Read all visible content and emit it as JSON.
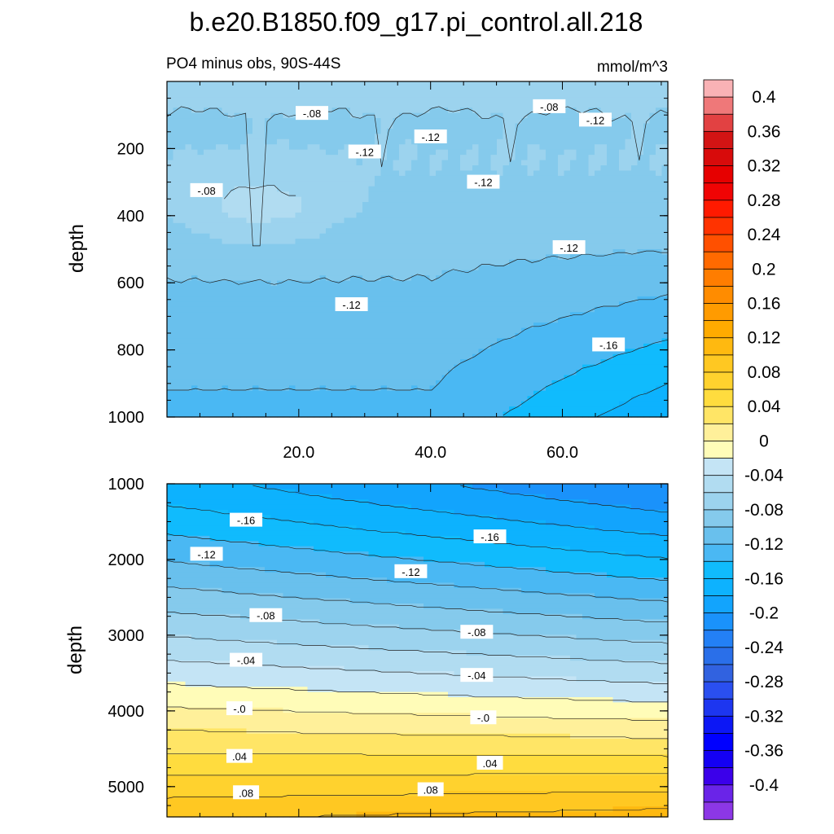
{
  "title": "b.e20.B1850.f09_g17.pi_control.all.218",
  "subtitle_left": "PO4 minus obs, 90S-44S",
  "subtitle_right": "mmol/m^3",
  "chart_data": [
    {
      "type": "contour",
      "panel": "upper",
      "ylabel": "depth",
      "ylim": [
        0,
        1000
      ],
      "y_inverted": true,
      "y_ticks": [
        "200",
        "400",
        "600",
        "800",
        "1000"
      ],
      "xlim": [
        0,
        76
      ],
      "x_ticks": [
        "20.0",
        "40.0",
        "60.0"
      ],
      "contour_labels": [
        {
          "text": "-.08",
          "x": 22,
          "y": 95
        },
        {
          "text": "-.08",
          "x": 58,
          "y": 75
        },
        {
          "text": "-.12",
          "x": 65,
          "y": 115
        },
        {
          "text": "-.12",
          "x": 40,
          "y": 165
        },
        {
          "text": "-.12",
          "x": 30,
          "y": 210
        },
        {
          "text": "-.12",
          "x": 48,
          "y": 300
        },
        {
          "text": "-.08",
          "x": 6,
          "y": 325
        },
        {
          "text": "-.12",
          "x": 61,
          "y": 495
        },
        {
          "text": "-.12",
          "x": 28,
          "y": 665
        },
        {
          "text": "-.16",
          "x": 67,
          "y": 785
        }
      ]
    },
    {
      "type": "contour",
      "panel": "lower",
      "ylabel": "depth",
      "ylim": [
        1000,
        5400
      ],
      "y_inverted": true,
      "y_ticks": [
        "1000",
        "2000",
        "3000",
        "4000",
        "5000"
      ],
      "contour_labels": [
        {
          "text": "-.16",
          "x": 12,
          "y": 1480
        },
        {
          "text": "-.16",
          "x": 49,
          "y": 1700
        },
        {
          "text": "-.12",
          "x": 6,
          "y": 1930
        },
        {
          "text": "-.12",
          "x": 37,
          "y": 2160
        },
        {
          "text": "-.08",
          "x": 15,
          "y": 2740
        },
        {
          "text": "-.08",
          "x": 47,
          "y": 2960
        },
        {
          "text": "-.04",
          "x": 12,
          "y": 3330
        },
        {
          "text": "-.04",
          "x": 47,
          "y": 3530
        },
        {
          "text": "-.0",
          "x": 11,
          "y": 3970
        },
        {
          "text": "-.0",
          "x": 48,
          "y": 4090
        },
        {
          "text": ".04",
          "x": 11,
          "y": 4600
        },
        {
          "text": ".04",
          "x": 49,
          "y": 4690
        },
        {
          "text": ".08",
          "x": 12,
          "y": 5080
        },
        {
          "text": ".08",
          "x": 40,
          "y": 5040
        }
      ]
    }
  ],
  "colorbar": {
    "labels": [
      "0.4",
      "0.36",
      "0.32",
      "0.28",
      "0.24",
      "0.2",
      "0.16",
      "0.12",
      "0.08",
      "0.04",
      "0",
      "-0.04",
      "-0.08",
      "-0.12",
      "-0.16",
      "-0.2",
      "-0.24",
      "-0.28",
      "-0.32",
      "-0.36",
      "-0.4"
    ],
    "levels": [
      0.42,
      0.4,
      0.38,
      0.36,
      0.34,
      0.32,
      0.3,
      0.28,
      0.26,
      0.24,
      0.22,
      0.2,
      0.18,
      0.16,
      0.14,
      0.12,
      0.1,
      0.08,
      0.06,
      0.04,
      0.02,
      0.0,
      -0.02,
      -0.04,
      -0.06,
      -0.08,
      -0.1,
      -0.12,
      -0.14,
      -0.16,
      -0.18,
      -0.2,
      -0.22,
      -0.24,
      -0.26,
      -0.28,
      -0.3,
      -0.32,
      -0.34,
      -0.36,
      -0.38,
      -0.4,
      -0.42
    ],
    "colors": [
      "#f9b2b5",
      "#ef7879",
      "#e24142",
      "#d31414",
      "#d80b0b",
      "#e60000",
      "#f00404",
      "#ff1a00",
      "#ff3300",
      "#ff5000",
      "#ff6a00",
      "#ff7d00",
      "#ff8c00",
      "#ff9b00",
      "#ffab00",
      "#ffb910",
      "#ffc822",
      "#ffd22e",
      "#ffdc3e",
      "#ffe566",
      "#fff09a",
      "#fffcb8",
      "#c4e4f5",
      "#b1dcf1",
      "#9cd3ee",
      "#85caec",
      "#69c0ed",
      "#4ab8f3",
      "#10bbfd",
      "#0db2fe",
      "#12a4fd",
      "#1a92fb",
      "#2380f5",
      "#2a6fe9",
      "#3162e0",
      "#2a4ff0",
      "#1d36f0",
      "#0c17f5",
      "#0000ff",
      "#1400f3",
      "#3b00ea",
      "#6a24e8",
      "#8c37e6"
    ]
  }
}
